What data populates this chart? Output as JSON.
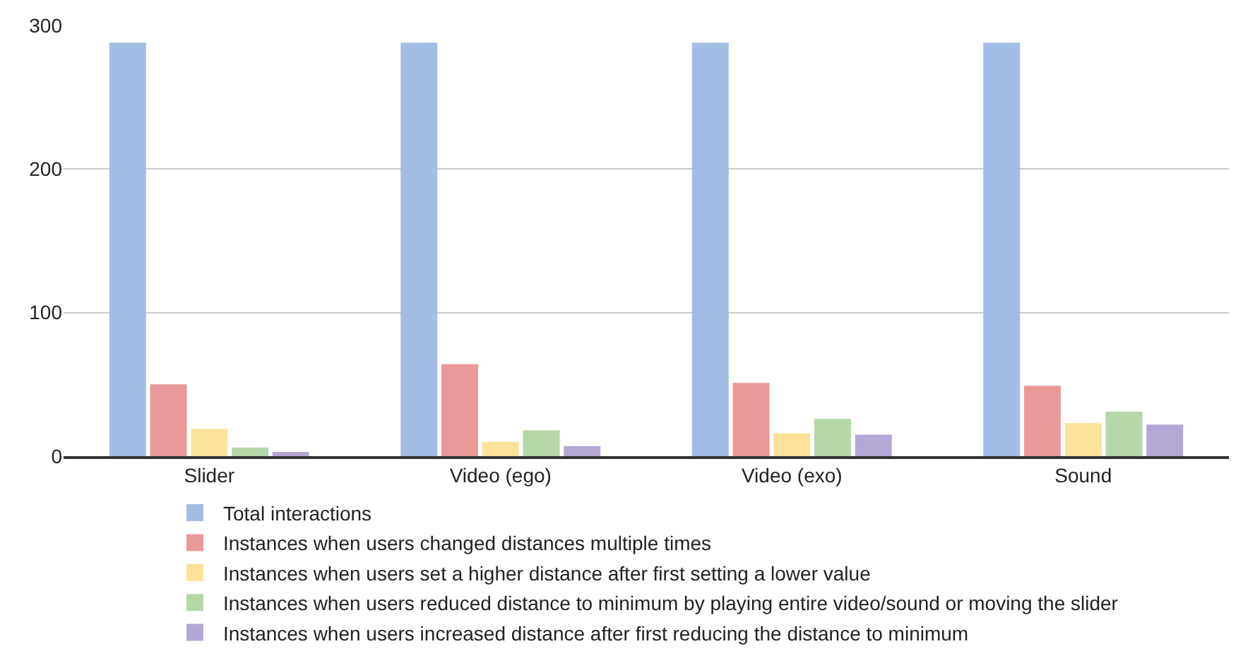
{
  "chart_data": {
    "type": "bar",
    "categories": [
      "Slider",
      "Video (ego)",
      "Video (exo)",
      "Sound"
    ],
    "series": [
      {
        "name": "Total interactions",
        "color": "#a4bde6",
        "values": [
          288,
          288,
          288,
          288
        ]
      },
      {
        "name": "Instances when users changed distances multiple times",
        "color": "#ea9999",
        "values": [
          50,
          64,
          51,
          49
        ]
      },
      {
        "name": "Instances when users set a higher distance after first setting a lower value",
        "color": "#fce399",
        "values": [
          19,
          10,
          16,
          23
        ]
      },
      {
        "name": "Instances when users reduced distance to minimum by playing entire video/sound or moving the slider",
        "color": "#b6d7a8",
        "values": [
          6,
          18,
          26,
          31
        ]
      },
      {
        "name": "Instances when users increased distance after first reducing the distance to minimum",
        "color": "#b4a7d6",
        "values": [
          3,
          7,
          15,
          22
        ]
      }
    ],
    "ylim": [
      0,
      300
    ],
    "yticks": [
      0,
      100,
      200,
      300
    ],
    "grid": "y",
    "legend": "bottom"
  }
}
